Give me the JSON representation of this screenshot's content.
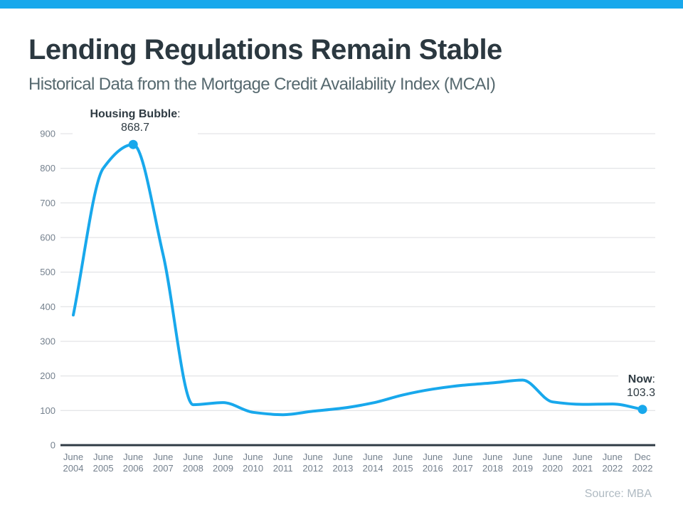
{
  "page": {
    "accent_color": "#18A8EC",
    "title": "Lending Regulations Remain Stable",
    "subtitle": "Historical Data from the Mortgage Credit Availability Index (MCAI)",
    "source": "Source: MBA"
  },
  "annotations": {
    "peak": {
      "label": "Housing Bubble",
      "colon": ":",
      "value": "868.7"
    },
    "now": {
      "label": "Now",
      "colon": ":",
      "value": "103.3"
    }
  },
  "chart_data": {
    "type": "line",
    "title": "Lending Regulations Remain Stable",
    "subtitle": "Historical Data from the Mortgage Credit Availability Index (MCAI)",
    "categories": [
      "June 2004",
      "June 2005",
      "June 2006",
      "June 2007",
      "June 2008",
      "June 2009",
      "June 2010",
      "June 2011",
      "June 2012",
      "June 2013",
      "June 2014",
      "June 2015",
      "June 2016",
      "June 2017",
      "June 2018",
      "June 2019",
      "June 2020",
      "June 2021",
      "June 2022",
      "Dec 2022"
    ],
    "values": [
      376,
      800,
      868.7,
      550,
      117,
      123,
      95,
      88,
      98,
      107,
      122,
      145,
      162,
      173,
      180,
      188,
      125,
      118,
      119,
      103.3
    ],
    "xlabel": "",
    "ylabel": "",
    "ylim": [
      0,
      900
    ],
    "ytick_interval": 100,
    "grid": true,
    "legend": "none",
    "line_color": "#18A8EC",
    "axis_color": "#2F3B45",
    "grid_color": "#DCDEE0",
    "tick_label_color": "#75818E",
    "annotated_points": [
      {
        "index": 2,
        "label": "Housing Bubble",
        "value": 868.7
      },
      {
        "index": 19,
        "label": "Now",
        "value": 103.3
      }
    ],
    "source": "Source: MBA"
  }
}
